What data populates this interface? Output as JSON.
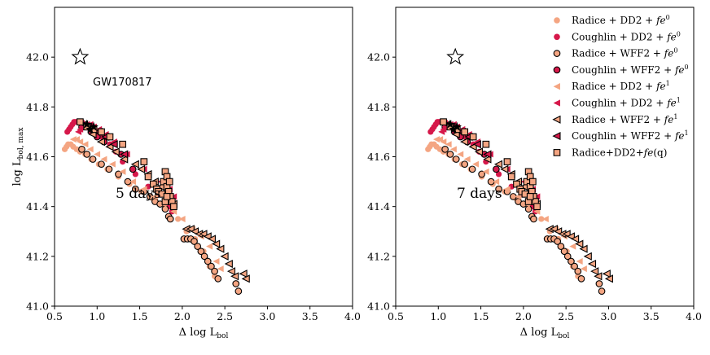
{
  "colors": {
    "radice": "#f4a582",
    "coughlin": "#d6184a",
    "edge": "#000000"
  },
  "chart_data": [
    {
      "type": "scatter",
      "xlabel_main": "Δ log L",
      "xlabel_sub": "bol",
      "ylabel_main": "log L",
      "ylabel_sub": "bol, max",
      "xlim": [
        0.5,
        4.0
      ],
      "ylim": [
        41.0,
        42.2
      ],
      "xticks": [
        "0.5",
        "1.0",
        "1.5",
        "2.0",
        "2.5",
        "3.0",
        "3.5",
        "4.0"
      ],
      "yticks": [
        "41.0",
        "41.2",
        "41.4",
        "41.6",
        "41.8",
        "42.0"
      ],
      "annotation": "5 days",
      "label_GW": "GW170817",
      "star": {
        "x": 0.8,
        "y": 42.0
      },
      "series": [
        {
          "name": "Radice + DD2 + fe^0",
          "values": [
            [
              0.62,
              41.63
            ],
            [
              0.64,
              41.64
            ],
            [
              0.66,
              41.65
            ],
            [
              0.69,
              41.65
            ],
            [
              0.72,
              41.64
            ],
            [
              0.76,
              41.63
            ],
            [
              0.8,
              41.62
            ],
            [
              0.86,
              41.61
            ],
            [
              0.93,
              41.59
            ],
            [
              1.02,
              41.57
            ],
            [
              1.12,
              41.55
            ],
            [
              1.25,
              41.52
            ],
            [
              1.38,
              41.49
            ],
            [
              1.52,
              41.46
            ],
            [
              1.66,
              41.43
            ],
            [
              1.8,
              41.4
            ],
            [
              1.95,
              41.35
            ],
            [
              2.05,
              41.3
            ],
            [
              2.15,
              41.27
            ],
            [
              2.25,
              41.22
            ],
            [
              2.32,
              41.16
            ],
            [
              2.38,
              41.12
            ]
          ]
        },
        {
          "name": "Coughlin + DD2 + fe^0",
          "values": [
            [
              0.65,
              41.7
            ],
            [
              0.67,
              41.71
            ],
            [
              0.69,
              41.72
            ],
            [
              0.71,
              41.73
            ],
            [
              0.73,
              41.74
            ],
            [
              0.75,
              41.74
            ],
            [
              0.77,
              41.74
            ],
            [
              0.79,
              41.74
            ],
            [
              0.82,
              41.74
            ],
            [
              0.85,
              41.73
            ],
            [
              0.88,
              41.72
            ],
            [
              0.92,
              41.71
            ],
            [
              0.97,
              41.7
            ],
            [
              1.05,
              41.68
            ],
            [
              1.15,
              41.65
            ],
            [
              1.22,
              41.62
            ],
            [
              1.3,
              41.58
            ],
            [
              1.45,
              41.53
            ],
            [
              1.6,
              41.48
            ],
            [
              1.72,
              41.45
            ],
            [
              1.8,
              41.42
            ],
            [
              1.85,
              41.4
            ],
            [
              1.88,
              41.38
            ]
          ]
        },
        {
          "name": "Radice + WFF2 + fe^0",
          "values": [
            [
              0.82,
              41.63
            ],
            [
              0.88,
              41.61
            ],
            [
              0.95,
              41.59
            ],
            [
              1.05,
              41.57
            ],
            [
              1.14,
              41.55
            ],
            [
              1.25,
              41.53
            ],
            [
              1.36,
              41.5
            ],
            [
              1.45,
              41.47
            ],
            [
              1.55,
              41.46
            ],
            [
              1.62,
              41.44
            ],
            [
              1.68,
              41.42
            ],
            [
              1.74,
              41.41
            ],
            [
              1.8,
              41.39
            ],
            [
              1.84,
              41.36
            ],
            [
              1.86,
              41.35
            ],
            [
              2.02,
              41.27
            ],
            [
              2.06,
              41.27
            ],
            [
              2.1,
              41.27
            ],
            [
              2.14,
              41.26
            ],
            [
              2.18,
              41.24
            ],
            [
              2.22,
              41.22
            ],
            [
              2.26,
              41.2
            ],
            [
              2.3,
              41.18
            ],
            [
              2.34,
              41.16
            ],
            [
              2.38,
              41.14
            ],
            [
              2.42,
              41.11
            ],
            [
              2.63,
              41.09
            ],
            [
              2.66,
              41.06
            ]
          ]
        },
        {
          "name": "Coughlin + WFF2 + fe^0",
          "values": [
            [
              0.82,
              41.72
            ],
            [
              0.87,
              41.72
            ],
            [
              0.93,
              41.7
            ],
            [
              1.0,
              41.68
            ],
            [
              1.08,
              41.66
            ],
            [
              1.28,
              41.61
            ],
            [
              1.42,
              41.55
            ]
          ]
        },
        {
          "name": "Radice + DD2 + fe^1",
          "values": [
            [
              0.72,
              41.67
            ],
            [
              0.76,
              41.67
            ],
            [
              0.8,
              41.66
            ],
            [
              0.86,
              41.65
            ],
            [
              0.92,
              41.63
            ],
            [
              1.0,
              41.61
            ],
            [
              1.08,
              41.59
            ],
            [
              1.18,
              41.57
            ],
            [
              1.3,
              41.54
            ],
            [
              1.42,
              41.5
            ],
            [
              1.55,
              41.47
            ],
            [
              1.68,
              41.44
            ],
            [
              1.78,
              41.41
            ],
            [
              1.9,
              41.38
            ],
            [
              2.0,
              41.35
            ],
            [
              2.12,
              41.31
            ],
            [
              2.22,
              41.28
            ],
            [
              2.32,
              41.24
            ],
            [
              2.4,
              41.18
            ],
            [
              2.45,
              41.15
            ]
          ]
        },
        {
          "name": "Coughlin + DD2 + fe^1",
          "values": [
            [
              0.78,
              41.7
            ],
            [
              0.8,
              41.71
            ],
            [
              0.82,
              41.72
            ],
            [
              0.85,
              41.73
            ],
            [
              0.88,
              41.73
            ],
            [
              0.92,
              41.73
            ],
            [
              0.96,
              41.72
            ],
            [
              1.02,
              41.71
            ],
            [
              1.1,
              41.69
            ],
            [
              1.2,
              41.66
            ],
            [
              1.35,
              41.61
            ],
            [
              1.55,
              41.55
            ],
            [
              1.75,
              41.5
            ],
            [
              1.85,
              41.47
            ],
            [
              1.9,
              41.44
            ]
          ]
        },
        {
          "name": "Radice + WFF2 + fe^1",
          "values": [
            [
              0.95,
              41.69
            ],
            [
              1.05,
              41.66
            ],
            [
              1.15,
              41.64
            ],
            [
              1.22,
              41.62
            ],
            [
              1.32,
              41.59
            ],
            [
              1.45,
              41.57
            ],
            [
              1.52,
              41.55
            ],
            [
              1.6,
              41.53
            ],
            [
              1.68,
              41.5
            ],
            [
              1.75,
              41.48
            ],
            [
              1.8,
              41.45
            ],
            [
              1.85,
              41.43
            ],
            [
              1.9,
              41.41
            ],
            [
              2.05,
              41.31
            ],
            [
              2.1,
              41.31
            ],
            [
              2.15,
              41.3
            ],
            [
              2.2,
              41.29
            ],
            [
              2.25,
              41.29
            ],
            [
              2.3,
              41.28
            ],
            [
              2.35,
              41.27
            ],
            [
              2.4,
              41.25
            ],
            [
              2.45,
              41.23
            ],
            [
              2.5,
              41.2
            ],
            [
              2.55,
              41.17
            ],
            [
              2.58,
              41.14
            ],
            [
              2.62,
              41.12
            ],
            [
              2.72,
              41.13
            ],
            [
              2.75,
              41.11
            ]
          ]
        },
        {
          "name": "Coughlin + WFF2 + fe^1",
          "values": [
            [
              0.85,
              41.73
            ],
            [
              0.9,
              41.72
            ],
            [
              0.95,
              41.71
            ],
            [
              1.02,
              41.7
            ],
            [
              1.1,
              41.68
            ],
            [
              1.2,
              41.65
            ],
            [
              1.32,
              41.61
            ]
          ]
        },
        {
          "name": "Radice+DD2+fe(q)",
          "values": [
            [
              0.8,
              41.74
            ],
            [
              0.88,
              41.72
            ],
            [
              0.96,
              41.71
            ],
            [
              1.05,
              41.7
            ],
            [
              1.15,
              41.68
            ],
            [
              1.3,
              41.65
            ],
            [
              1.55,
              41.58
            ],
            [
              1.6,
              41.52
            ],
            [
              1.66,
              41.49
            ],
            [
              1.7,
              41.47
            ],
            [
              1.72,
              41.46
            ],
            [
              1.76,
              41.45
            ],
            [
              1.78,
              41.5
            ],
            [
              1.8,
              41.54
            ],
            [
              1.82,
              41.52
            ],
            [
              1.82,
              41.48
            ],
            [
              1.84,
              41.46
            ],
            [
              1.86,
              41.44
            ],
            [
              1.88,
              41.42
            ],
            [
              1.9,
              41.4
            ],
            [
              1.8,
              41.42
            ],
            [
              1.82,
              41.44
            ],
            [
              1.85,
              41.5
            ]
          ]
        },
        {
          "name": "GW170817 points",
          "values": [
            [
              0.88,
              41.73
            ],
            [
              0.92,
              41.71
            ],
            [
              0.96,
              41.72
            ]
          ]
        }
      ]
    },
    {
      "type": "scatter",
      "xlabel_main": "Δ log L",
      "xlabel_sub": "bol",
      "ylabel_main": "",
      "ylabel_sub": "",
      "xlim": [
        0.5,
        4.0
      ],
      "ylim": [
        41.0,
        42.2
      ],
      "xticks": [
        "0.5",
        "1.0",
        "1.5",
        "2.0",
        "2.5",
        "3.0",
        "3.5",
        "4.0"
      ],
      "yticks": [
        "41.0",
        "41.2",
        "41.4",
        "41.6",
        "41.8",
        "42.0"
      ],
      "annotation": "7 days",
      "star": {
        "x": 1.2,
        "y": 42.0
      },
      "legend_position": "upper-right",
      "legend": [
        {
          "label": "Radice + DD2 + ",
          "sup": "0",
          "marker": "circle",
          "style": "radice-plain"
        },
        {
          "label": "Coughlin + DD2 + ",
          "sup": "0",
          "marker": "circle",
          "style": "coughlin-plain"
        },
        {
          "label": "Radice + WFF2 + ",
          "sup": "0",
          "marker": "circle",
          "style": "radice-edge"
        },
        {
          "label": "Coughlin + WFF2 + ",
          "sup": "0",
          "marker": "circle",
          "style": "coughlin-edge"
        },
        {
          "label": "Radice + DD2 + ",
          "sup": "1",
          "marker": "triangle",
          "style": "radice-plain"
        },
        {
          "label": "Coughlin + DD2 + ",
          "sup": "1",
          "marker": "triangle",
          "style": "coughlin-plain"
        },
        {
          "label": "Radice + WFF2 + ",
          "sup": "1",
          "marker": "triangle",
          "style": "radice-edge"
        },
        {
          "label": "Coughlin + WFF2 + ",
          "sup": "1",
          "marker": "triangle",
          "style": "coughlin-edge"
        },
        {
          "label": "Radice+DD2+",
          "sup": "",
          "suffix": "(q)",
          "marker": "square",
          "style": "radice-edge"
        }
      ],
      "x_shift": 0.26
    }
  ]
}
